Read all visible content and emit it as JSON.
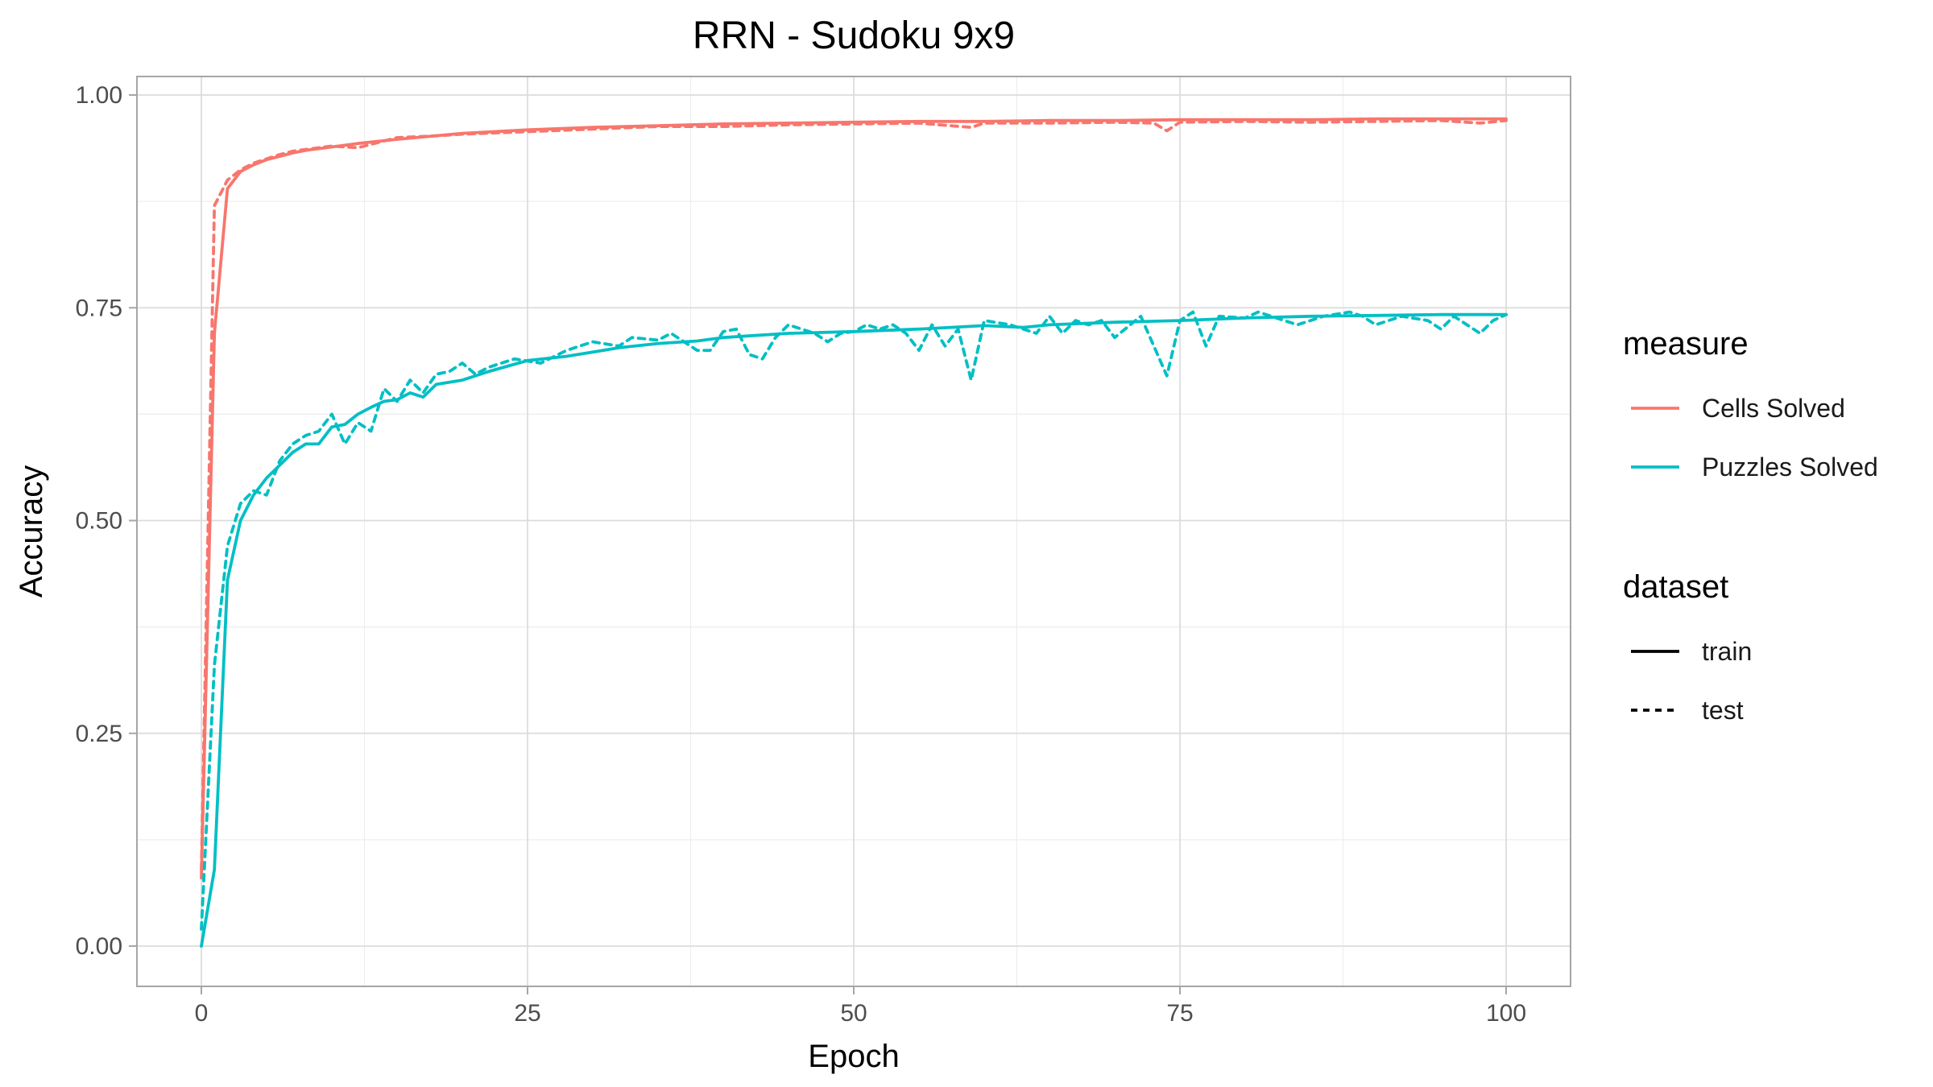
{
  "chart_data": {
    "type": "line",
    "title": "RRN - Sudoku 9x9",
    "xlabel": "Epoch",
    "ylabel": "Accuracy",
    "xlim": [
      0,
      100
    ],
    "ylim": [
      0,
      1
    ],
    "x_ticks": [
      0,
      25,
      50,
      75,
      100
    ],
    "y_ticks": [
      0,
      0.25,
      0.5,
      0.75,
      1.0
    ],
    "x_tick_labels": [
      "0",
      "25",
      "50",
      "75",
      "100"
    ],
    "y_tick_labels": [
      "0.00",
      "0.25",
      "0.50",
      "0.75",
      "1.00"
    ],
    "grid": true,
    "legend_position": "right",
    "legend": {
      "measure": {
        "title": "measure",
        "entries": [
          {
            "label": "Cells Solved",
            "color": "#F8766D"
          },
          {
            "label": "Puzzles Solved",
            "color": "#00BFC4"
          }
        ]
      },
      "dataset": {
        "title": "dataset",
        "entries": [
          {
            "label": "train",
            "linetype": "solid"
          },
          {
            "label": "test",
            "linetype": "dashed"
          }
        ]
      }
    },
    "series": [
      {
        "measure": "Cells Solved",
        "dataset": "train",
        "color": "#F8766D",
        "linetype": "solid",
        "points": [
          [
            0,
            0.08
          ],
          [
            1,
            0.72
          ],
          [
            2,
            0.89
          ],
          [
            3,
            0.91
          ],
          [
            4,
            0.918
          ],
          [
            5,
            0.924
          ],
          [
            6,
            0.928
          ],
          [
            7,
            0.932
          ],
          [
            8,
            0.935
          ],
          [
            9,
            0.937
          ],
          [
            10,
            0.939
          ],
          [
            12,
            0.943
          ],
          [
            15,
            0.948
          ],
          [
            20,
            0.955
          ],
          [
            25,
            0.959
          ],
          [
            30,
            0.962
          ],
          [
            35,
            0.964
          ],
          [
            40,
            0.966
          ],
          [
            45,
            0.967
          ],
          [
            50,
            0.968
          ],
          [
            55,
            0.969
          ],
          [
            60,
            0.969
          ],
          [
            65,
            0.97
          ],
          [
            70,
            0.97
          ],
          [
            75,
            0.971
          ],
          [
            80,
            0.971
          ],
          [
            85,
            0.971
          ],
          [
            90,
            0.972
          ],
          [
            95,
            0.972
          ],
          [
            100,
            0.972
          ]
        ]
      },
      {
        "measure": "Cells Solved",
        "dataset": "test",
        "color": "#F8766D",
        "linetype": "dashed",
        "points": [
          [
            0,
            0.09
          ],
          [
            1,
            0.87
          ],
          [
            2,
            0.9
          ],
          [
            3,
            0.912
          ],
          [
            4,
            0.92
          ],
          [
            5,
            0.925
          ],
          [
            6,
            0.93
          ],
          [
            7,
            0.934
          ],
          [
            8,
            0.936
          ],
          [
            9,
            0.938
          ],
          [
            10,
            0.94
          ],
          [
            12,
            0.938
          ],
          [
            15,
            0.95
          ],
          [
            18,
            0.952
          ],
          [
            20,
            0.954
          ],
          [
            25,
            0.957
          ],
          [
            30,
            0.96
          ],
          [
            35,
            0.963
          ],
          [
            40,
            0.963
          ],
          [
            45,
            0.965
          ],
          [
            50,
            0.966
          ],
          [
            55,
            0.967
          ],
          [
            59,
            0.962
          ],
          [
            60,
            0.967
          ],
          [
            65,
            0.967
          ],
          [
            70,
            0.968
          ],
          [
            73,
            0.967
          ],
          [
            74,
            0.958
          ],
          [
            75,
            0.968
          ],
          [
            80,
            0.969
          ],
          [
            85,
            0.968
          ],
          [
            90,
            0.969
          ],
          [
            95,
            0.97
          ],
          [
            98,
            0.967
          ],
          [
            100,
            0.97
          ]
        ]
      },
      {
        "measure": "Puzzles Solved",
        "dataset": "train",
        "color": "#00BFC4",
        "linetype": "solid",
        "points": [
          [
            0,
            0.0
          ],
          [
            1,
            0.09
          ],
          [
            2,
            0.43
          ],
          [
            3,
            0.5
          ],
          [
            4,
            0.53
          ],
          [
            5,
            0.55
          ],
          [
            6,
            0.565
          ],
          [
            7,
            0.58
          ],
          [
            8,
            0.59
          ],
          [
            9,
            0.59
          ],
          [
            10,
            0.61
          ],
          [
            11,
            0.613
          ],
          [
            12,
            0.625
          ],
          [
            13,
            0.633
          ],
          [
            14,
            0.64
          ],
          [
            15,
            0.642
          ],
          [
            16,
            0.65
          ],
          [
            17,
            0.645
          ],
          [
            18,
            0.66
          ],
          [
            20,
            0.665
          ],
          [
            22,
            0.675
          ],
          [
            25,
            0.688
          ],
          [
            28,
            0.693
          ],
          [
            30,
            0.698
          ],
          [
            32,
            0.703
          ],
          [
            35,
            0.708
          ],
          [
            38,
            0.711
          ],
          [
            40,
            0.715
          ],
          [
            45,
            0.72
          ],
          [
            50,
            0.722
          ],
          [
            55,
            0.725
          ],
          [
            60,
            0.729
          ],
          [
            63,
            0.727
          ],
          [
            65,
            0.73
          ],
          [
            70,
            0.733
          ],
          [
            75,
            0.735
          ],
          [
            80,
            0.738
          ],
          [
            85,
            0.74
          ],
          [
            90,
            0.741
          ],
          [
            95,
            0.742
          ],
          [
            100,
            0.742
          ]
        ]
      },
      {
        "measure": "Puzzles Solved",
        "dataset": "test",
        "color": "#00BFC4",
        "linetype": "dashed",
        "points": [
          [
            0,
            0.02
          ],
          [
            1,
            0.33
          ],
          [
            2,
            0.47
          ],
          [
            3,
            0.52
          ],
          [
            4,
            0.535
          ],
          [
            5,
            0.53
          ],
          [
            6,
            0.57
          ],
          [
            7,
            0.59
          ],
          [
            8,
            0.6
          ],
          [
            9,
            0.605
          ],
          [
            10,
            0.625
          ],
          [
            11,
            0.59
          ],
          [
            12,
            0.615
          ],
          [
            13,
            0.605
          ],
          [
            14,
            0.655
          ],
          [
            15,
            0.64
          ],
          [
            16,
            0.665
          ],
          [
            17,
            0.65
          ],
          [
            18,
            0.672
          ],
          [
            19,
            0.675
          ],
          [
            20,
            0.685
          ],
          [
            21,
            0.672
          ],
          [
            22,
            0.68
          ],
          [
            24,
            0.69
          ],
          [
            26,
            0.685
          ],
          [
            28,
            0.7
          ],
          [
            30,
            0.71
          ],
          [
            32,
            0.705
          ],
          [
            33,
            0.715
          ],
          [
            35,
            0.712
          ],
          [
            36,
            0.72
          ],
          [
            38,
            0.7
          ],
          [
            39,
            0.7
          ],
          [
            40,
            0.722
          ],
          [
            41,
            0.725
          ],
          [
            42,
            0.695
          ],
          [
            43,
            0.69
          ],
          [
            44,
            0.715
          ],
          [
            45,
            0.73
          ],
          [
            46,
            0.725
          ],
          [
            47,
            0.72
          ],
          [
            48,
            0.71
          ],
          [
            49,
            0.72
          ],
          [
            50,
            0.722
          ],
          [
            51,
            0.73
          ],
          [
            52,
            0.725
          ],
          [
            53,
            0.73
          ],
          [
            54,
            0.72
          ],
          [
            55,
            0.7
          ],
          [
            56,
            0.73
          ],
          [
            57,
            0.705
          ],
          [
            58,
            0.725
          ],
          [
            59,
            0.665
          ],
          [
            60,
            0.735
          ],
          [
            62,
            0.73
          ],
          [
            64,
            0.72
          ],
          [
            65,
            0.74
          ],
          [
            66,
            0.72
          ],
          [
            67,
            0.735
          ],
          [
            68,
            0.73
          ],
          [
            69,
            0.735
          ],
          [
            70,
            0.715
          ],
          [
            72,
            0.74
          ],
          [
            74,
            0.67
          ],
          [
            75,
            0.735
          ],
          [
            76,
            0.745
          ],
          [
            77,
            0.705
          ],
          [
            78,
            0.74
          ],
          [
            80,
            0.738
          ],
          [
            81,
            0.745
          ],
          [
            82,
            0.74
          ],
          [
            84,
            0.73
          ],
          [
            86,
            0.74
          ],
          [
            88,
            0.745
          ],
          [
            89,
            0.74
          ],
          [
            90,
            0.73
          ],
          [
            92,
            0.74
          ],
          [
            94,
            0.735
          ],
          [
            95,
            0.725
          ],
          [
            96,
            0.74
          ],
          [
            98,
            0.72
          ],
          [
            99,
            0.735
          ],
          [
            100,
            0.742
          ]
        ]
      }
    ]
  }
}
